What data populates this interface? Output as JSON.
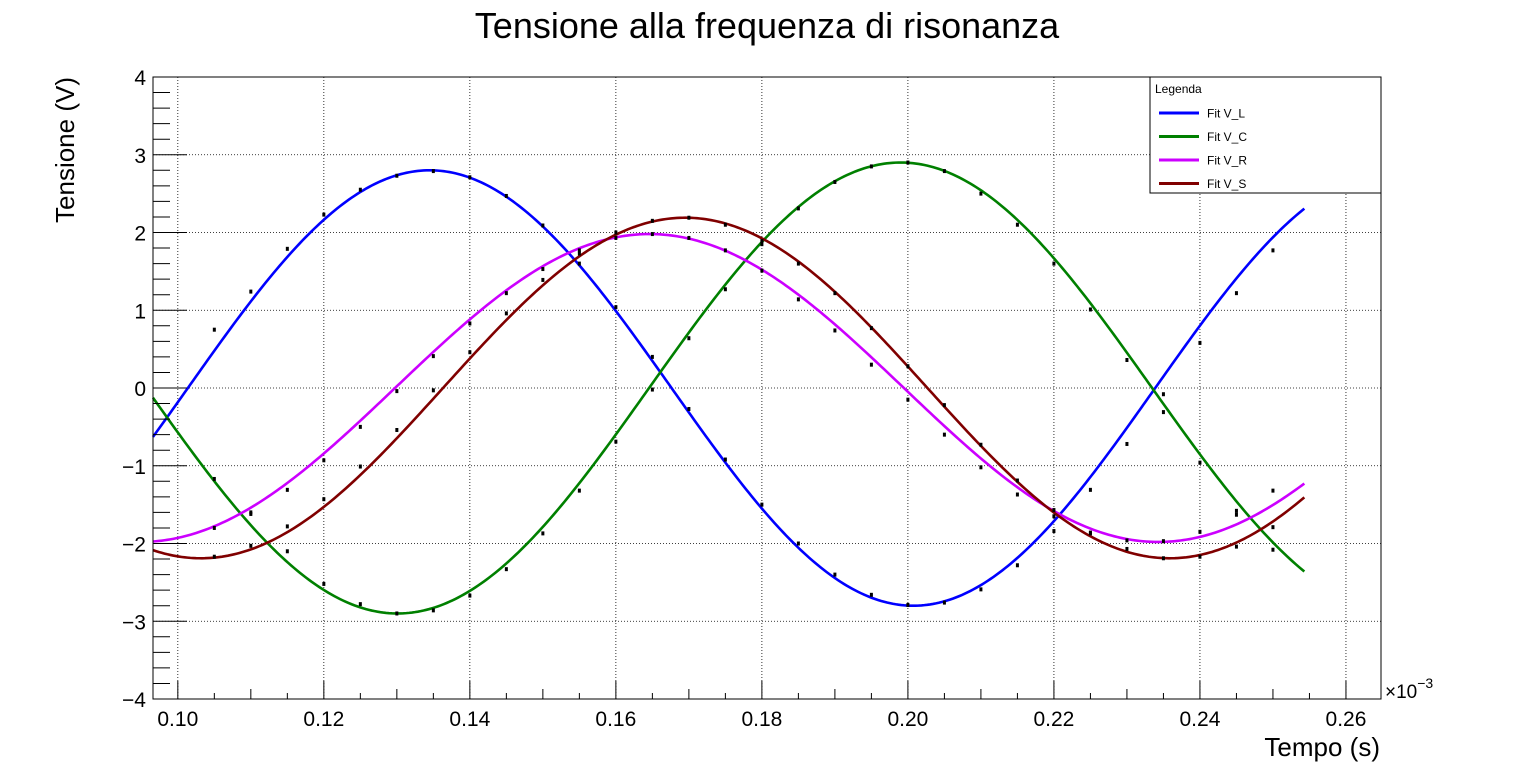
{
  "chart_data": {
    "type": "line",
    "title": "Tensione alla frequenza di risonanza",
    "xlabel": "Tempo (s)",
    "ylabel": "Tensione (V)",
    "x_multiplier_label": "×10",
    "x_multiplier_exponent": "−3",
    "xlim": [
      0.0966,
      0.2648
    ],
    "ylim": [
      -4,
      4
    ],
    "x_ticks": [
      0.1,
      0.12,
      0.14,
      0.16,
      0.18,
      0.2,
      0.22,
      0.24,
      0.26
    ],
    "x_tick_labels": [
      "0.10",
      "0.12",
      "0.14",
      "0.16",
      "0.18",
      "0.20",
      "0.22",
      "0.24",
      "0.26"
    ],
    "y_ticks": [
      -4,
      -3,
      -2,
      -1,
      0,
      1,
      2,
      3,
      4
    ],
    "y_tick_labels": [
      "−4",
      "−3",
      "−2",
      "−1",
      "0",
      "1",
      "2",
      "3",
      "4"
    ],
    "grid": true,
    "legend": {
      "title": "Legenda",
      "position": "top-right"
    },
    "fit_range": [
      0.0966,
      0.2543
    ],
    "series": [
      {
        "name": "Fit V_L",
        "color": "#0000ff",
        "amplitude": 2.8,
        "period": 0.1325,
        "peak_x": 0.1345,
        "offset": 0.0,
        "points_x": [
          0.105,
          0.11,
          0.115,
          0.12,
          0.125,
          0.13,
          0.135,
          0.14,
          0.145,
          0.15,
          0.155,
          0.16,
          0.165,
          0.17,
          0.175,
          0.18,
          0.185,
          0.19,
          0.195,
          0.2,
          0.205,
          0.21,
          0.215,
          0.22,
          0.225,
          0.23,
          0.235,
          0.24,
          0.245,
          0.25
        ],
        "points_y": [
          0.75,
          1.24,
          1.79,
          2.23,
          2.55,
          2.73,
          2.79,
          2.71,
          2.47,
          2.09,
          1.6,
          1.04,
          0.4,
          -0.27,
          -0.92,
          -1.5,
          -2.0,
          -2.4,
          -2.66,
          -2.79,
          -2.76,
          -2.59,
          -2.28,
          -1.84,
          -1.31,
          -0.72,
          -0.08,
          0.58,
          1.22,
          1.77
        ]
      },
      {
        "name": "Fit V_C",
        "color": "#008000",
        "amplitude": 2.9,
        "period": 0.1378,
        "peak_x": 0.199,
        "offset": 0.0,
        "points_x": [
          0.105,
          0.11,
          0.115,
          0.12,
          0.125,
          0.13,
          0.135,
          0.14,
          0.145,
          0.15,
          0.155,
          0.16,
          0.165,
          0.17,
          0.175,
          0.18,
          0.185,
          0.19,
          0.195,
          0.2,
          0.205,
          0.21,
          0.215,
          0.22,
          0.225,
          0.23,
          0.235,
          0.24,
          0.245,
          0.25
        ],
        "points_y": [
          -1.17,
          -1.62,
          -2.1,
          -2.52,
          -2.78,
          -2.9,
          -2.86,
          -2.67,
          -2.33,
          -1.87,
          -1.32,
          -0.69,
          -0.02,
          0.64,
          1.27,
          1.85,
          2.31,
          2.65,
          2.85,
          2.9,
          2.79,
          2.5,
          2.1,
          1.6,
          1.01,
          0.36,
          -0.31,
          -0.96,
          -1.58,
          -2.08
        ]
      },
      {
        "name": "Fit V_R",
        "color": "#cc00ff",
        "amplitude": 1.98,
        "period": 0.1394,
        "peak_x": 0.1646,
        "offset": 0.0,
        "points_x": [
          0.105,
          0.11,
          0.115,
          0.12,
          0.125,
          0.13,
          0.135,
          0.14,
          0.145,
          0.15,
          0.155,
          0.16,
          0.165,
          0.17,
          0.175,
          0.18,
          0.185,
          0.19,
          0.195,
          0.2,
          0.205,
          0.21,
          0.215,
          0.22,
          0.225,
          0.23,
          0.235,
          0.24,
          0.245,
          0.25
        ],
        "points_y": [
          -1.8,
          -1.6,
          -1.31,
          -0.93,
          -0.5,
          -0.04,
          0.41,
          0.83,
          1.22,
          1.53,
          1.77,
          1.93,
          1.98,
          1.93,
          1.77,
          1.51,
          1.14,
          0.74,
          0.3,
          -0.15,
          -0.6,
          -1.02,
          -1.37,
          -1.65,
          -1.86,
          -1.96,
          -1.97,
          -1.85,
          -1.63,
          -1.32
        ]
      },
      {
        "name": "Fit V_S",
        "color": "#800000",
        "amplitude": 2.19,
        "period": 0.1327,
        "peak_x": 0.1695,
        "offset": 0.0,
        "points_x": [
          0.105,
          0.11,
          0.115,
          0.12,
          0.125,
          0.13,
          0.135,
          0.14,
          0.145,
          0.15,
          0.155,
          0.16,
          0.165,
          0.17,
          0.175,
          0.18,
          0.185,
          0.19,
          0.195,
          0.2,
          0.205,
          0.21,
          0.215,
          0.22,
          0.225,
          0.23,
          0.235,
          0.24,
          0.245,
          0.25
        ],
        "points_y": [
          -2.17,
          -2.03,
          -1.78,
          -1.43,
          -1.01,
          -0.54,
          -0.03,
          0.46,
          0.96,
          1.39,
          1.73,
          2.0,
          2.15,
          2.19,
          2.1,
          1.89,
          1.6,
          1.22,
          0.77,
          0.28,
          -0.22,
          -0.73,
          -1.19,
          -1.57,
          -1.87,
          -2.07,
          -2.19,
          -2.17,
          -2.04,
          -1.79
        ]
      }
    ]
  }
}
